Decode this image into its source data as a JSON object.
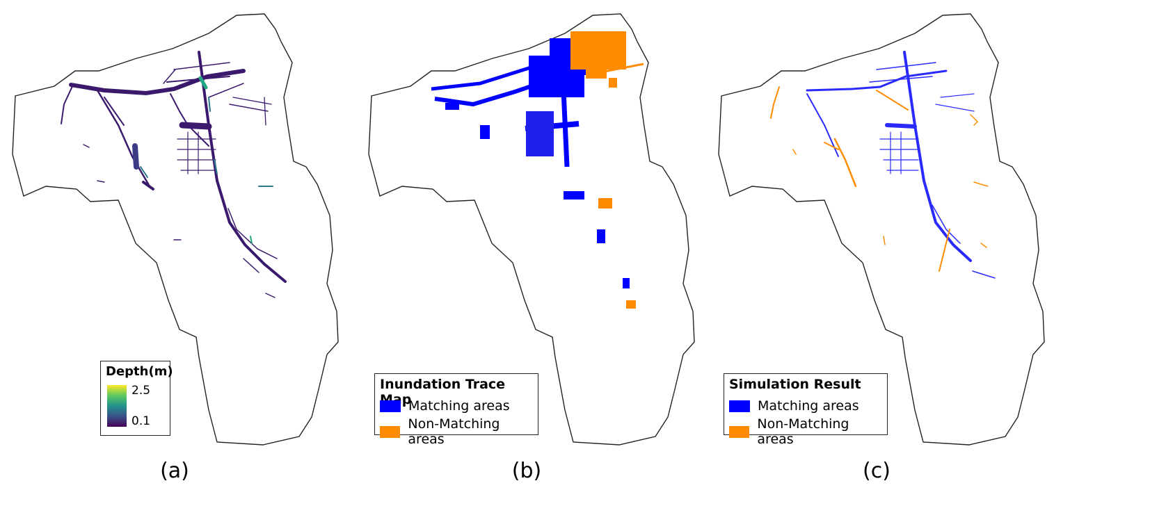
{
  "panels": [
    {
      "id": "a",
      "label": "(a)"
    },
    {
      "id": "b",
      "label": "(b)"
    },
    {
      "id": "c",
      "label": "(c)"
    }
  ],
  "legend_a": {
    "title": "Depth(m)",
    "max": "2.5",
    "min": "0.1"
  },
  "legend_b": {
    "title": "Inundation Trace Map",
    "items": [
      {
        "label": "Matching areas",
        "color": "#0000ff"
      },
      {
        "label": "Non-Matching areas",
        "color": "#ff8c00"
      }
    ]
  },
  "legend_c": {
    "title": "Simulation Result",
    "items": [
      {
        "label": "Matching areas",
        "color": "#2a2aff"
      },
      {
        "label": "Non-Matching areas",
        "color": "#ff8c00"
      }
    ]
  },
  "colors": {
    "outline": "#222222",
    "depth_low": "#440154",
    "depth_high": "#fde725",
    "matching": "#0000ff",
    "non_matching": "#ff8c00"
  }
}
